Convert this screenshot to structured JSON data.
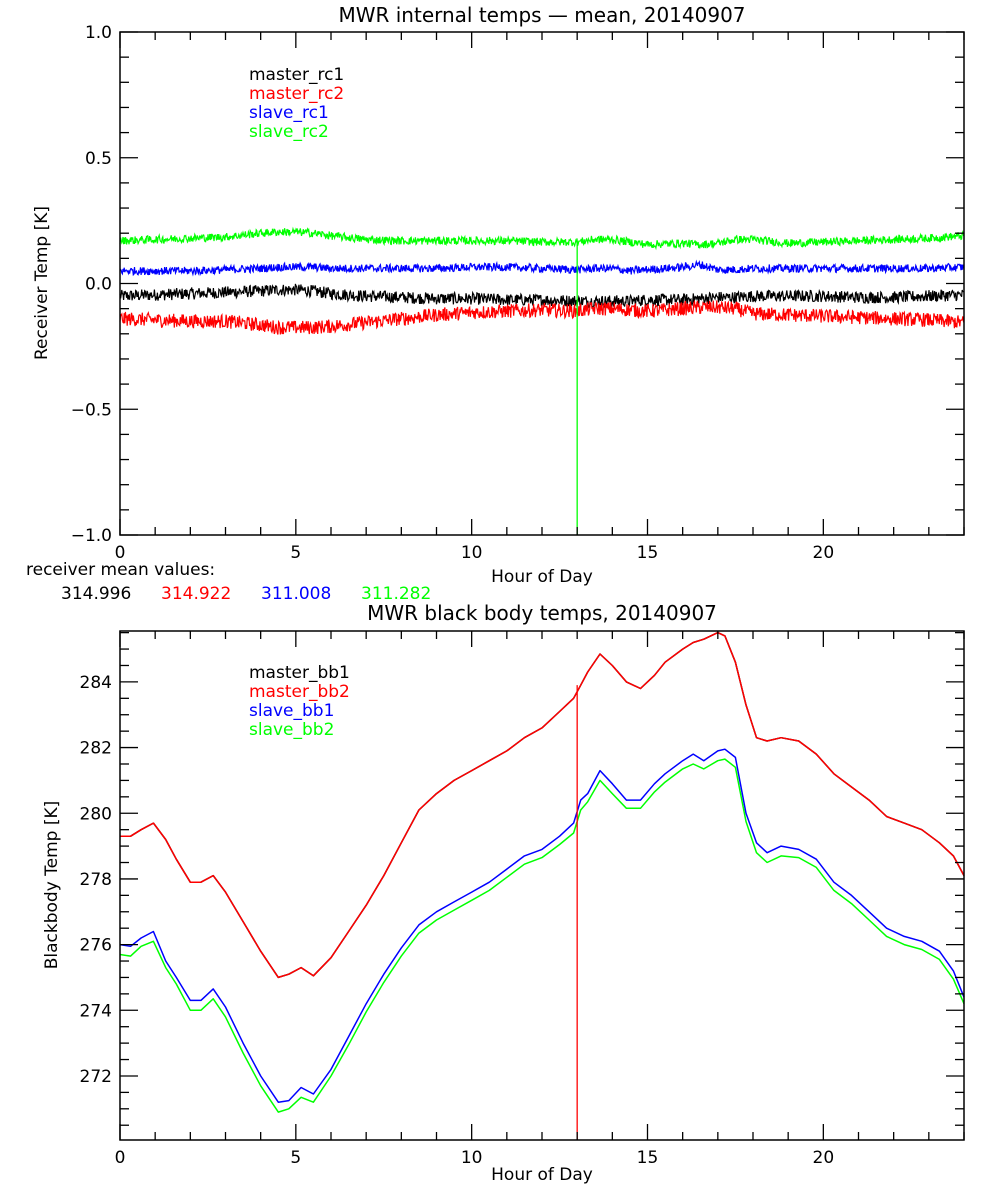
{
  "chart_data": [
    {
      "type": "line",
      "title": "MWR internal temps — mean, 20140907",
      "xlabel": "Hour of Day",
      "ylabel": "Receiver Temp [K]",
      "xlim": [
        0,
        24
      ],
      "ylim": [
        -1.0,
        1.0
      ],
      "x_ticks": [
        0,
        5,
        10,
        15,
        20
      ],
      "x_tick_labels": [
        "0",
        "5",
        "10",
        "15",
        "20"
      ],
      "x_minor_step": 1,
      "y_ticks": [
        -1.0,
        -0.5,
        0.0,
        0.5,
        1.0
      ],
      "y_tick_labels": [
        "−1.0",
        "−0.5",
        "0.0",
        "0.5",
        "1.0"
      ],
      "y_minor_step": 0.1,
      "grid": false,
      "legend_position": "top-left (inside)",
      "noise_band": 0.02,
      "x": [
        0,
        1,
        2,
        3,
        4,
        4.5,
        5,
        5.5,
        6,
        7,
        8,
        9,
        10,
        11,
        12,
        13,
        13.5,
        14,
        14.5,
        15,
        16,
        16.5,
        17,
        17.5,
        18,
        19,
        20,
        21,
        22,
        23,
        24
      ],
      "series": [
        {
          "name": "master_rc1",
          "color": "#000000",
          "values": [
            -0.05,
            -0.045,
            -0.04,
            -0.035,
            -0.03,
            -0.025,
            -0.025,
            -0.03,
            -0.04,
            -0.05,
            -0.055,
            -0.06,
            -0.06,
            -0.065,
            -0.065,
            -0.07,
            -0.07,
            -0.07,
            -0.07,
            -0.065,
            -0.065,
            -0.06,
            -0.055,
            -0.055,
            -0.05,
            -0.05,
            -0.05,
            -0.055,
            -0.055,
            -0.05,
            -0.045
          ]
        },
        {
          "name": "master_rc2",
          "color": "#ff0000",
          "values": [
            -0.14,
            -0.145,
            -0.15,
            -0.15,
            -0.165,
            -0.175,
            -0.175,
            -0.175,
            -0.17,
            -0.155,
            -0.14,
            -0.125,
            -0.115,
            -0.11,
            -0.105,
            -0.11,
            -0.1,
            -0.1,
            -0.105,
            -0.11,
            -0.1,
            -0.095,
            -0.095,
            -0.1,
            -0.12,
            -0.125,
            -0.13,
            -0.135,
            -0.14,
            -0.145,
            -0.155
          ]
        },
        {
          "name": "slave_rc1",
          "color": "#0000ff",
          "values": [
            0.05,
            0.05,
            0.05,
            0.055,
            0.06,
            0.065,
            0.065,
            0.065,
            0.06,
            0.06,
            0.06,
            0.06,
            0.065,
            0.065,
            0.06,
            0.055,
            0.06,
            0.06,
            0.05,
            0.055,
            0.065,
            0.075,
            0.055,
            0.055,
            0.06,
            0.06,
            0.06,
            0.06,
            0.06,
            0.06,
            0.065
          ]
        },
        {
          "name": "slave_rc2",
          "color": "#00ff00",
          "values": [
            0.17,
            0.175,
            0.18,
            0.185,
            0.2,
            0.205,
            0.205,
            0.2,
            0.19,
            0.175,
            0.17,
            0.17,
            0.17,
            0.17,
            0.165,
            0.165,
            0.175,
            0.175,
            0.165,
            0.155,
            0.16,
            0.155,
            0.16,
            0.175,
            0.175,
            0.16,
            0.165,
            0.17,
            0.175,
            0.18,
            0.19
          ]
        }
      ],
      "vertical_line": {
        "series": "slave_rc2",
        "x": 13.0,
        "from": 0.17,
        "to": -1.0
      },
      "annotation": {
        "label": "receiver mean values:",
        "values": [
          {
            "text": "314.996",
            "color": "#000000"
          },
          {
            "text": "314.922",
            "color": "#ff0000"
          },
          {
            "text": "311.008",
            "color": "#0000ff"
          },
          {
            "text": "311.282",
            "color": "#00ff00"
          }
        ]
      }
    },
    {
      "type": "line",
      "title": "MWR black body temps, 20140907",
      "xlabel": "Hour of Day",
      "ylabel": "Blackbody Temp [K]",
      "xlim": [
        0,
        24
      ],
      "ylim": [
        270.05,
        285.55
      ],
      "x_ticks": [
        0,
        5,
        10,
        15,
        20
      ],
      "x_tick_labels": [
        "0",
        "5",
        "10",
        "15",
        "20"
      ],
      "x_minor_step": 1,
      "y_ticks": [
        272,
        274,
        276,
        278,
        280,
        282,
        284
      ],
      "y_tick_labels": [
        "272",
        "274",
        "276",
        "278",
        "280",
        "282",
        "284"
      ],
      "y_minor_step": 0.5,
      "grid": false,
      "legend_position": "top-left (inside)",
      "x": [
        0,
        0.3,
        0.6,
        0.95,
        1.3,
        1.6,
        2.0,
        2.3,
        2.65,
        3.0,
        3.5,
        4.0,
        4.5,
        4.8,
        5.15,
        5.5,
        6.0,
        6.5,
        7.0,
        7.5,
        8.0,
        8.5,
        9.0,
        9.5,
        10.0,
        10.5,
        11.0,
        11.5,
        12.0,
        12.5,
        12.9,
        13.1,
        13.3,
        13.65,
        14.0,
        14.4,
        14.8,
        15.2,
        15.5,
        16.0,
        16.3,
        16.6,
        17.0,
        17.2,
        17.5,
        17.8,
        18.1,
        18.4,
        18.8,
        19.3,
        19.8,
        20.3,
        20.8,
        21.3,
        21.8,
        22.3,
        22.8,
        23.3,
        23.7,
        24.0
      ],
      "series": [
        {
          "name": "master_bb1",
          "color": "#000000",
          "values": [
            279.3,
            279.3,
            279.5,
            279.7,
            279.2,
            278.6,
            277.9,
            277.9,
            278.1,
            277.6,
            276.7,
            275.8,
            275.0,
            275.1,
            275.3,
            275.05,
            275.6,
            276.4,
            277.2,
            278.1,
            279.1,
            280.1,
            280.6,
            281.0,
            281.3,
            281.6,
            281.9,
            282.3,
            282.6,
            283.1,
            283.5,
            283.9,
            284.3,
            284.85,
            284.5,
            284.0,
            283.8,
            284.2,
            284.6,
            285.0,
            285.2,
            285.3,
            285.5,
            285.4,
            284.6,
            283.3,
            282.3,
            282.2,
            282.3,
            282.2,
            281.8,
            281.2,
            280.8,
            280.4,
            279.9,
            279.7,
            279.5,
            279.1,
            278.7,
            278.1
          ]
        },
        {
          "name": "master_bb2",
          "color": "#ff0000",
          "values": [
            279.3,
            279.3,
            279.5,
            279.7,
            279.2,
            278.6,
            277.9,
            277.9,
            278.1,
            277.6,
            276.7,
            275.8,
            275.0,
            275.1,
            275.3,
            275.05,
            275.6,
            276.4,
            277.2,
            278.1,
            279.1,
            280.1,
            280.6,
            281.0,
            281.3,
            281.6,
            281.9,
            282.3,
            282.6,
            283.1,
            283.5,
            283.9,
            284.3,
            284.85,
            284.5,
            284.0,
            283.8,
            284.2,
            284.6,
            285.0,
            285.2,
            285.3,
            285.5,
            285.4,
            284.6,
            283.3,
            282.3,
            282.2,
            282.3,
            282.2,
            281.8,
            281.2,
            280.8,
            280.4,
            279.9,
            279.7,
            279.5,
            279.1,
            278.7,
            278.1
          ]
        },
        {
          "name": "slave_bb1",
          "color": "#0000ff",
          "values": [
            276.0,
            275.95,
            276.2,
            276.4,
            275.5,
            275.0,
            274.3,
            274.3,
            274.65,
            274.1,
            273.0,
            272.0,
            271.2,
            271.25,
            271.65,
            271.45,
            272.2,
            273.2,
            274.2,
            275.1,
            275.9,
            276.6,
            277.0,
            277.3,
            277.6,
            277.9,
            278.3,
            278.7,
            278.9,
            279.3,
            279.7,
            280.4,
            280.6,
            281.3,
            280.9,
            280.4,
            280.4,
            280.9,
            281.2,
            281.6,
            281.8,
            281.6,
            281.9,
            281.95,
            281.7,
            280.0,
            279.1,
            278.8,
            279.0,
            278.9,
            278.6,
            277.9,
            277.5,
            277.0,
            276.5,
            276.25,
            276.1,
            275.8,
            275.2,
            274.4
          ]
        },
        {
          "name": "slave_bb2",
          "color": "#00ff00",
          "values": [
            275.7,
            275.65,
            275.95,
            276.1,
            275.3,
            274.8,
            274.0,
            274.0,
            274.35,
            273.8,
            272.7,
            271.7,
            270.9,
            271.0,
            271.35,
            271.2,
            272.0,
            272.95,
            273.95,
            274.85,
            275.65,
            276.35,
            276.75,
            277.05,
            277.35,
            277.65,
            278.05,
            278.45,
            278.65,
            279.05,
            279.4,
            280.1,
            280.35,
            281.0,
            280.6,
            280.15,
            280.15,
            280.65,
            280.95,
            281.35,
            281.5,
            281.35,
            281.6,
            281.65,
            281.4,
            279.75,
            278.8,
            278.5,
            278.7,
            278.65,
            278.35,
            277.65,
            277.25,
            276.75,
            276.25,
            276.0,
            275.85,
            275.55,
            274.95,
            274.2
          ]
        }
      ],
      "vertical_line": {
        "series": "master_bb2",
        "x": 13.0,
        "from": 283.9,
        "to": 270.05
      }
    }
  ]
}
